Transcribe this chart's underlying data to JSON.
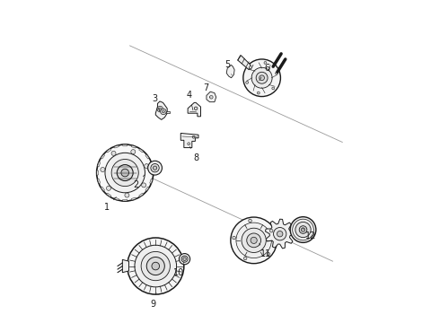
{
  "background_color": "#ffffff",
  "line_color": "#1a1a1a",
  "fig_width": 4.9,
  "fig_height": 3.6,
  "dpi": 100,
  "font_size": 7,
  "diagonal_line_color": "#888888",
  "parts_labels": {
    "1": [
      0.175,
      0.375,
      0.155,
      0.34
    ],
    "2": [
      0.255,
      0.445,
      0.235,
      0.415
    ],
    "3": [
      0.31,
      0.66,
      0.295,
      0.7
    ],
    "4": [
      0.415,
      0.66,
      0.405,
      0.71
    ],
    "5": [
      0.545,
      0.76,
      0.53,
      0.8
    ],
    "6": [
      0.62,
      0.74,
      0.64,
      0.785
    ],
    "7": [
      0.475,
      0.69,
      0.46,
      0.73
    ],
    "8": [
      0.4,
      0.555,
      0.42,
      0.51
    ],
    "9": [
      0.305,
      0.095,
      0.295,
      0.06
    ],
    "10": [
      0.395,
      0.195,
      0.38,
      0.155
    ],
    "11": [
      0.62,
      0.255,
      0.64,
      0.215
    ],
    "12": [
      0.755,
      0.295,
      0.78,
      0.27
    ]
  }
}
